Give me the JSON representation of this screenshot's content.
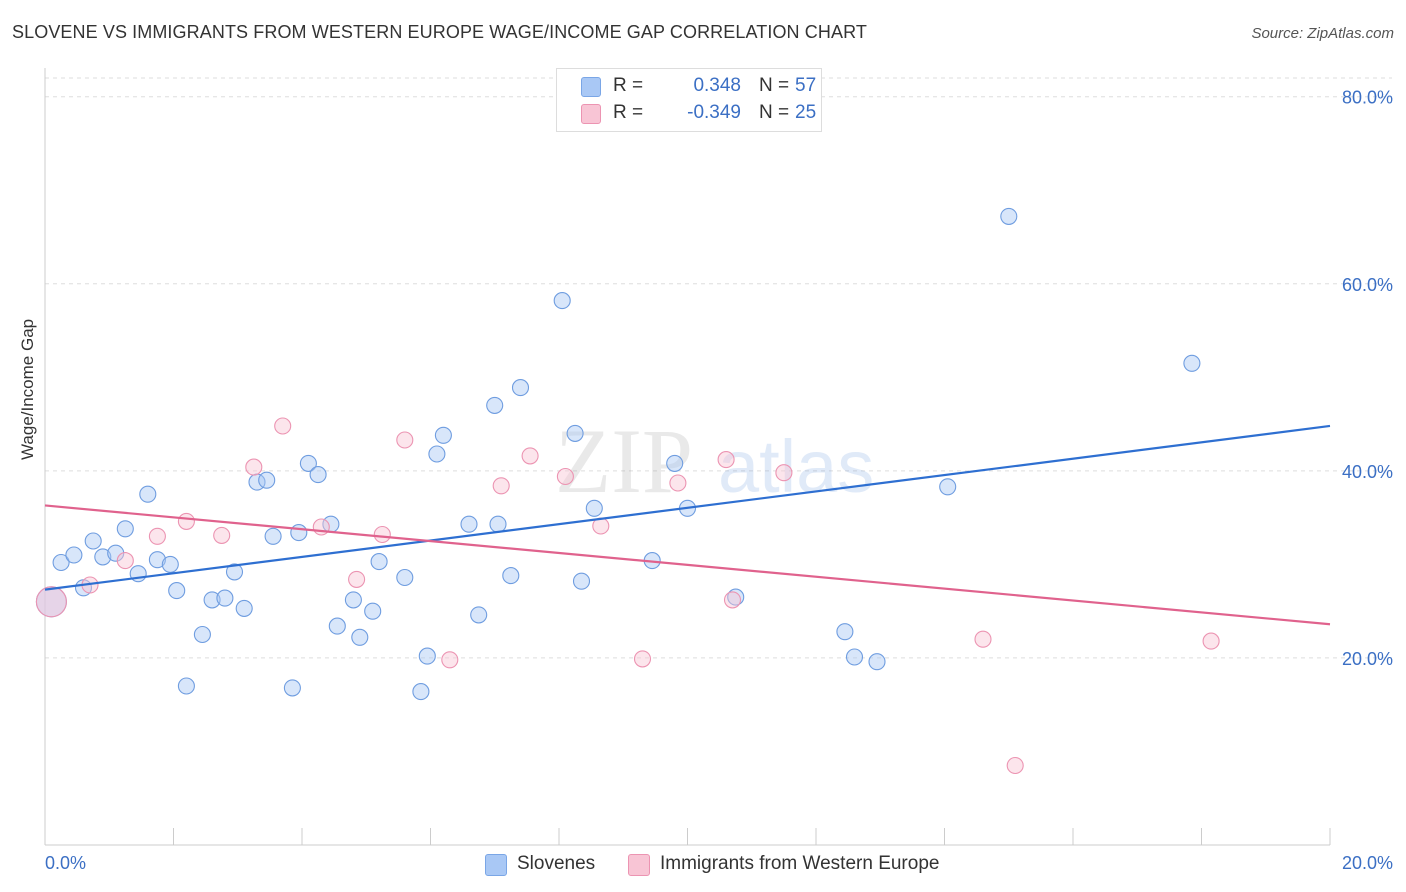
{
  "title": "SLOVENE VS IMMIGRANTS FROM WESTERN EUROPE WAGE/INCOME GAP CORRELATION CHART",
  "source": "Source: ZipAtlas.com",
  "watermark": {
    "zip": "ZIP",
    "atlas": "atlas"
  },
  "legend_stats": [
    {
      "r_label": "R =",
      "r_value": "0.348",
      "n_label": "N =",
      "n_value": "57",
      "color": "#a9c8f5",
      "border": "#7aa6e6"
    },
    {
      "r_label": "R =",
      "r_value": "-0.349",
      "n_label": "N =",
      "n_value": "25",
      "color": "#f8c5d5",
      "border": "#ec94b2"
    }
  ],
  "bottom_legend": [
    {
      "label": "Slovenes",
      "color": "#a9c8f5",
      "border": "#7aa6e6"
    },
    {
      "label": "Immigrants from Western Europe",
      "color": "#f8c5d5",
      "border": "#ec94b2"
    }
  ],
  "chart_data": {
    "type": "scatter",
    "title": "SLOVENE VS IMMIGRANTS FROM WESTERN EUROPE WAGE/INCOME GAP CORRELATION CHART",
    "xlabel": "",
    "ylabel": "Wage/Income Gap",
    "xlim": [
      0.0,
      20.0
    ],
    "ylim": [
      0.0,
      82.0
    ],
    "x_tick_labels": [
      "0.0%",
      "20.0%"
    ],
    "y_ticks": [
      20,
      40,
      60,
      80
    ],
    "y_tick_labels": [
      "20.0%",
      "40.0%",
      "60.0%",
      "80.0%"
    ],
    "grid": true,
    "series": [
      {
        "name": "Slovenes",
        "color": "#a9c8f5",
        "stroke": "#6f9de0",
        "line_color": "#2e6fd1",
        "trend": [
          [
            0.0,
            27.3
          ],
          [
            20.0,
            44.8
          ]
        ],
        "points": [
          [
            0.1,
            26.0
          ],
          [
            0.25,
            30.2
          ],
          [
            0.45,
            31.0
          ],
          [
            0.6,
            27.5
          ],
          [
            0.75,
            32.5
          ],
          [
            0.9,
            30.8
          ],
          [
            1.1,
            31.2
          ],
          [
            1.25,
            33.8
          ],
          [
            1.45,
            29.0
          ],
          [
            1.6,
            37.5
          ],
          [
            1.75,
            30.5
          ],
          [
            1.95,
            30.0
          ],
          [
            2.05,
            27.2
          ],
          [
            2.2,
            17.0
          ],
          [
            2.45,
            22.5
          ],
          [
            2.6,
            26.2
          ],
          [
            2.8,
            26.4
          ],
          [
            2.95,
            29.2
          ],
          [
            3.1,
            25.3
          ],
          [
            3.3,
            38.8
          ],
          [
            3.45,
            39.0
          ],
          [
            3.55,
            33.0
          ],
          [
            3.85,
            16.8
          ],
          [
            3.95,
            33.4
          ],
          [
            4.1,
            40.8
          ],
          [
            4.25,
            39.6
          ],
          [
            4.45,
            34.3
          ],
          [
            4.55,
            23.4
          ],
          [
            4.8,
            26.2
          ],
          [
            4.9,
            22.2
          ],
          [
            5.1,
            25.0
          ],
          [
            5.2,
            30.3
          ],
          [
            5.6,
            28.6
          ],
          [
            5.85,
            16.4
          ],
          [
            5.95,
            20.2
          ],
          [
            6.1,
            41.8
          ],
          [
            6.2,
            43.8
          ],
          [
            6.6,
            34.3
          ],
          [
            6.75,
            24.6
          ],
          [
            7.0,
            47.0
          ],
          [
            7.05,
            34.3
          ],
          [
            7.25,
            28.8
          ],
          [
            7.4,
            48.9
          ],
          [
            8.05,
            58.2
          ],
          [
            8.25,
            44.0
          ],
          [
            8.35,
            28.2
          ],
          [
            8.55,
            36.0
          ],
          [
            9.45,
            30.4
          ],
          [
            9.8,
            40.8
          ],
          [
            10.0,
            36.0
          ],
          [
            10.75,
            26.5
          ],
          [
            12.45,
            22.8
          ],
          [
            12.6,
            20.1
          ],
          [
            12.95,
            19.6
          ],
          [
            14.05,
            38.3
          ],
          [
            15.0,
            67.2
          ],
          [
            17.85,
            51.5
          ]
        ]
      },
      {
        "name": "Immigrants from Western Europe",
        "color": "#f8c5d5",
        "stroke": "#ec94b2",
        "line_color": "#e0628d",
        "trend": [
          [
            0.0,
            36.3
          ],
          [
            20.0,
            23.6
          ]
        ],
        "points": [
          [
            0.1,
            26.0
          ],
          [
            0.7,
            27.8
          ],
          [
            1.25,
            30.4
          ],
          [
            1.75,
            33.0
          ],
          [
            2.2,
            34.6
          ],
          [
            2.75,
            33.1
          ],
          [
            3.25,
            40.4
          ],
          [
            3.7,
            44.8
          ],
          [
            4.3,
            34.0
          ],
          [
            4.85,
            28.4
          ],
          [
            5.25,
            33.2
          ],
          [
            5.6,
            43.3
          ],
          [
            6.3,
            19.8
          ],
          [
            7.1,
            38.4
          ],
          [
            7.55,
            41.6
          ],
          [
            8.1,
            39.4
          ],
          [
            8.65,
            34.1
          ],
          [
            9.3,
            19.9
          ],
          [
            9.85,
            38.7
          ],
          [
            10.6,
            41.2
          ],
          [
            10.7,
            26.2
          ],
          [
            11.5,
            39.8
          ],
          [
            14.6,
            22.0
          ],
          [
            15.1,
            8.5
          ],
          [
            18.15,
            21.8
          ]
        ]
      }
    ]
  }
}
